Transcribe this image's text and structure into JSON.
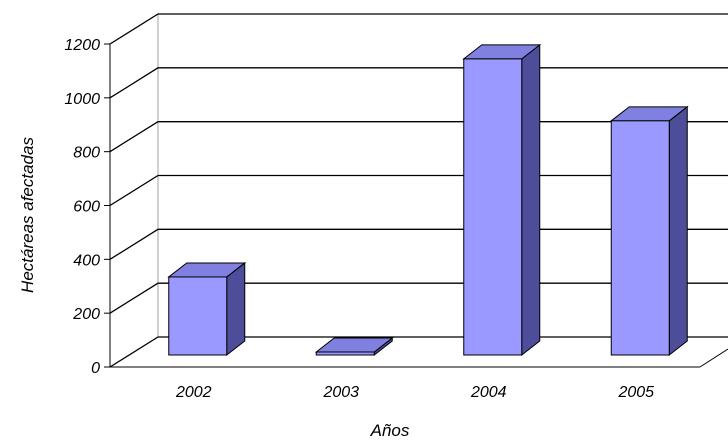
{
  "chart_data": {
    "type": "bar",
    "style": "3d",
    "title": "",
    "xlabel": "Años",
    "ylabel": "Hectáreas afectadas",
    "categories": [
      "2002",
      "2003",
      "2004",
      "2005"
    ],
    "series": [
      {
        "values": [
          290,
          10,
          1100,
          870
        ]
      }
    ],
    "ylim": [
      0,
      1200
    ],
    "yticks": [
      "0",
      "200",
      "400",
      "600",
      "800",
      "1000",
      "1200"
    ],
    "grid": true,
    "legend": "none",
    "colors": {
      "bar_front": "#9999ff",
      "bar_top": "#8080e0",
      "bar_side": "#4d4d99",
      "gridline": "#000000",
      "wall": "#ffffff",
      "floor": "#ffffff"
    }
  }
}
